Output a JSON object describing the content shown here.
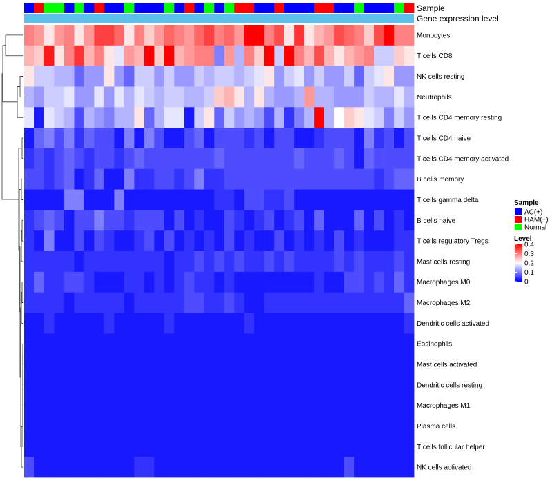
{
  "chart_data": {
    "type": "heatmap",
    "title": "",
    "colorscale": {
      "low": "#0000ff",
      "mid": "#ffffff",
      "high": "#ff0000",
      "min": 0,
      "mid_value": 0.2,
      "max": 0.4
    },
    "annotations": {
      "sample_label": "Sample",
      "gene_expression_label": "Gene expression level",
      "gene_expression_color": "#5bc0eb",
      "sample_colors": {
        "AC(+)": "#0000ff",
        "HAM(+)": "#ff0000",
        "Normal": "#00ff00"
      },
      "sample_groups": [
        "AC(+)",
        "HAM(+)",
        "Normal",
        "Normal",
        "AC(+)",
        "Normal",
        "AC(+)",
        "HAM(+)",
        "AC(+)",
        "AC(+)",
        "Normal",
        "AC(+)",
        "AC(+)",
        "AC(+)",
        "Normal",
        "AC(+)",
        "HAM(+)",
        "AC(+)",
        "Normal",
        "AC(+)",
        "Normal",
        "HAM(+)",
        "HAM(+)",
        "AC(+)",
        "AC(+)",
        "HAM(+)",
        "AC(+)",
        "AC(+)",
        "AC(+)",
        "HAM(+)",
        "HAM(+)",
        "AC(+)",
        "AC(+)",
        "Normal",
        "AC(+)",
        "AC(+)",
        "AC(+)",
        "Normal",
        "HAM(+)"
      ]
    },
    "legend": {
      "position": "right",
      "sample_title": "Sample",
      "sample_entries": [
        {
          "label": "AC(+)",
          "color": "#0000ff"
        },
        {
          "label": "HAM(+)",
          "color": "#ff0000"
        },
        {
          "label": "Normal",
          "color": "#00ff00"
        }
      ],
      "level_title": "Level",
      "level_ticks": [
        "0.4",
        "0.3",
        "0.2",
        "0.1",
        "0"
      ],
      "level_tick_values": [
        0.4,
        0.3,
        0.2,
        0.1,
        0
      ]
    },
    "rows": [
      "Monocytes",
      "T cells CD8",
      "NK cells resting",
      "Neutrophils",
      "T cells CD4 memory resting",
      "T cells CD4 naive",
      "T cells CD4 memory activated",
      "B cells memory",
      "T cells gamma delta",
      "B cells naive",
      "T cells regulatory  Tregs",
      "Mast cells resting",
      "Macrophages M0",
      "Macrophages M2",
      "Dendritic cells activated",
      "Eosinophils",
      "Mast cells activated",
      "Dendritic cells resting",
      "Macrophages M1",
      "Plasma cells",
      "T cells follicular helper",
      "NK cells activated"
    ],
    "n_columns": 39,
    "values": [
      [
        0.3,
        0.28,
        0.22,
        0.28,
        0.3,
        0.22,
        0.28,
        0.35,
        0.35,
        0.32,
        0.22,
        0.3,
        0.24,
        0.28,
        0.32,
        0.3,
        0.28,
        0.32,
        0.35,
        0.3,
        0.32,
        0.28,
        0.4,
        0.4,
        0.3,
        0.34,
        0.22,
        0.36,
        0.22,
        0.26,
        0.28,
        0.34,
        0.32,
        0.3,
        0.24,
        0.34,
        0.4,
        0.3,
        0.3
      ],
      [
        0.26,
        0.24,
        0.38,
        0.22,
        0.3,
        0.36,
        0.26,
        0.3,
        0.22,
        0.18,
        0.28,
        0.26,
        0.4,
        0.24,
        0.4,
        0.26,
        0.28,
        0.3,
        0.3,
        0.1,
        0.28,
        0.14,
        0.3,
        0.24,
        0.4,
        0.16,
        0.4,
        0.3,
        0.26,
        0.34,
        0.26,
        0.22,
        0.26,
        0.28,
        0.3,
        0.16,
        0.16,
        0.24,
        0.22
      ],
      [
        0.22,
        0.16,
        0.16,
        0.14,
        0.14,
        0.08,
        0.12,
        0.12,
        0.22,
        0.12,
        0.08,
        0.16,
        0.16,
        0.12,
        0.16,
        0.12,
        0.12,
        0.16,
        0.14,
        0.16,
        0.16,
        0.14,
        0.16,
        0.18,
        0.22,
        0.12,
        0.16,
        0.18,
        0.12,
        0.16,
        0.12,
        0.12,
        0.16,
        0.08,
        0.16,
        0.18,
        0.22,
        0.12,
        0.12
      ],
      [
        0.14,
        0.12,
        0.16,
        0.16,
        0.18,
        0.12,
        0.12,
        0.18,
        0.12,
        0.18,
        0.14,
        0.18,
        0.16,
        0.14,
        0.16,
        0.16,
        0.14,
        0.14,
        0.16,
        0.24,
        0.26,
        0.22,
        0.14,
        0.22,
        0.14,
        0.12,
        0.12,
        0.14,
        0.28,
        0.14,
        0.14,
        0.12,
        0.12,
        0.12,
        0.16,
        0.14,
        0.14,
        0.18,
        0.14
      ],
      [
        0.18,
        0.02,
        0.18,
        0.16,
        0.14,
        0.06,
        0.14,
        0.12,
        0.1,
        0.14,
        0.14,
        0.22,
        0.08,
        0.14,
        0.18,
        0.18,
        0.02,
        0.16,
        0.22,
        0.08,
        0.16,
        0.12,
        0.14,
        0.12,
        0.06,
        0.14,
        0.04,
        0.1,
        0.14,
        0.4,
        0.14,
        0.2,
        0.24,
        0.22,
        0.18,
        0.16,
        0.1,
        0.16,
        0.12
      ],
      [
        0.02,
        0.08,
        0.1,
        0.06,
        0.1,
        0.04,
        0.08,
        0.06,
        0.06,
        0.02,
        0.1,
        0.02,
        0.1,
        0.06,
        0.02,
        0.02,
        0.06,
        0.08,
        0.02,
        0.06,
        0.06,
        0.06,
        0.04,
        0.06,
        0.02,
        0.06,
        0.06,
        0.02,
        0.02,
        0.04,
        0.06,
        0.06,
        0.06,
        0.02,
        0.1,
        0.04,
        0.06,
        0.02,
        0.06
      ],
      [
        0.04,
        0.06,
        0.04,
        0.06,
        0.08,
        0.06,
        0.04,
        0.06,
        0.06,
        0.04,
        0.06,
        0.08,
        0.06,
        0.06,
        0.06,
        0.06,
        0.06,
        0.06,
        0.06,
        0.08,
        0.06,
        0.06,
        0.06,
        0.06,
        0.06,
        0.06,
        0.06,
        0.08,
        0.06,
        0.06,
        0.06,
        0.08,
        0.06,
        0.02,
        0.08,
        0.06,
        0.06,
        0.06,
        0.06
      ],
      [
        0.06,
        0.06,
        0.04,
        0.06,
        0.08,
        0.02,
        0.04,
        0.08,
        0.02,
        0.02,
        0.1,
        0.04,
        0.04,
        0.06,
        0.06,
        0.04,
        0.06,
        0.1,
        0.04,
        0.04,
        0.06,
        0.06,
        0.06,
        0.06,
        0.06,
        0.06,
        0.06,
        0.06,
        0.06,
        0.06,
        0.06,
        0.06,
        0.06,
        0.06,
        0.06,
        0.04,
        0.06,
        0.08,
        0.08
      ],
      [
        0.02,
        0.02,
        0.02,
        0.02,
        0.1,
        0.1,
        0.02,
        0.02,
        0.02,
        0.1,
        0.02,
        0.02,
        0.02,
        0.02,
        0.02,
        0.02,
        0.02,
        0.02,
        0.02,
        0.04,
        0.04,
        0.02,
        0.06,
        0.06,
        0.04,
        0.04,
        0.06,
        0.02,
        0.02,
        0.02,
        0.02,
        0.02,
        0.02,
        0.02,
        0.02,
        0.02,
        0.02,
        0.02,
        0.02
      ],
      [
        0.04,
        0.06,
        0.08,
        0.06,
        0.02,
        0.06,
        0.06,
        0.1,
        0.06,
        0.06,
        0.04,
        0.06,
        0.06,
        0.06,
        0.02,
        0.06,
        0.02,
        0.04,
        0.02,
        0.02,
        0.06,
        0.04,
        0.02,
        0.04,
        0.06,
        0.02,
        0.04,
        0.06,
        0.02,
        0.08,
        0.02,
        0.02,
        0.02,
        0.08,
        0.02,
        0.06,
        0.02,
        0.04,
        0.02
      ],
      [
        0.04,
        0.02,
        0.1,
        0.02,
        0.02,
        0.06,
        0.02,
        0.06,
        0.04,
        0.02,
        0.02,
        0.04,
        0.06,
        0.02,
        0.06,
        0.02,
        0.04,
        0.02,
        0.04,
        0.02,
        0.06,
        0.02,
        0.04,
        0.02,
        0.02,
        0.06,
        0.02,
        0.04,
        0.02,
        0.04,
        0.02,
        0.06,
        0.02,
        0.04,
        0.02,
        0.02,
        0.02,
        0.04,
        0.04
      ],
      [
        0.04,
        0.04,
        0.04,
        0.04,
        0.04,
        0.02,
        0.04,
        0.04,
        0.04,
        0.04,
        0.04,
        0.04,
        0.04,
        0.04,
        0.02,
        0.04,
        0.04,
        0.06,
        0.04,
        0.06,
        0.04,
        0.06,
        0.04,
        0.04,
        0.06,
        0.04,
        0.06,
        0.04,
        0.04,
        0.04,
        0.04,
        0.06,
        0.04,
        0.06,
        0.04,
        0.04,
        0.04,
        0.06,
        0.04
      ],
      [
        0.04,
        0.08,
        0.04,
        0.04,
        0.06,
        0.06,
        0.04,
        0.02,
        0.02,
        0.02,
        0.04,
        0.04,
        0.02,
        0.04,
        0.02,
        0.04,
        0.06,
        0.04,
        0.04,
        0.02,
        0.04,
        0.02,
        0.02,
        0.02,
        0.02,
        0.02,
        0.02,
        0.02,
        0.02,
        0.04,
        0.02,
        0.02,
        0.06,
        0.06,
        0.04,
        0.06,
        0.04,
        0.08,
        0.04
      ],
      [
        0.04,
        0.04,
        0.04,
        0.04,
        0.02,
        0.04,
        0.04,
        0.04,
        0.04,
        0.04,
        0.02,
        0.04,
        0.04,
        0.04,
        0.04,
        0.04,
        0.06,
        0.06,
        0.04,
        0.04,
        0.06,
        0.04,
        0.02,
        0.02,
        0.04,
        0.04,
        0.04,
        0.04,
        0.04,
        0.04,
        0.04,
        0.04,
        0.04,
        0.04,
        0.04,
        0.04,
        0.04,
        0.04,
        0.08
      ],
      [
        0.02,
        0.02,
        0.04,
        0.02,
        0.02,
        0.02,
        0.02,
        0.02,
        0.04,
        0.02,
        0.02,
        0.02,
        0.02,
        0.02,
        0.04,
        0.02,
        0.02,
        0.02,
        0.02,
        0.02,
        0.02,
        0.02,
        0.04,
        0.02,
        0.02,
        0.02,
        0.02,
        0.02,
        0.02,
        0.02,
        0.02,
        0.02,
        0.02,
        0.02,
        0.02,
        0.02,
        0.02,
        0.02,
        0.04
      ],
      [
        0.02,
        0.02,
        0.02,
        0.02,
        0.02,
        0.02,
        0.02,
        0.02,
        0.02,
        0.02,
        0.02,
        0.02,
        0.02,
        0.02,
        0.02,
        0.02,
        0.02,
        0.02,
        0.02,
        0.02,
        0.02,
        0.02,
        0.02,
        0.02,
        0.02,
        0.02,
        0.02,
        0.02,
        0.02,
        0.02,
        0.02,
        0.02,
        0.02,
        0.02,
        0.02,
        0.02,
        0.02,
        0.02,
        0.02
      ],
      [
        0.02,
        0.02,
        0.02,
        0.02,
        0.02,
        0.02,
        0.02,
        0.02,
        0.02,
        0.02,
        0.02,
        0.02,
        0.02,
        0.02,
        0.02,
        0.02,
        0.02,
        0.02,
        0.02,
        0.02,
        0.02,
        0.02,
        0.02,
        0.02,
        0.02,
        0.02,
        0.02,
        0.02,
        0.02,
        0.02,
        0.02,
        0.02,
        0.02,
        0.02,
        0.02,
        0.02,
        0.02,
        0.02,
        0.02
      ],
      [
        0.02,
        0.02,
        0.02,
        0.02,
        0.02,
        0.02,
        0.02,
        0.02,
        0.02,
        0.02,
        0.02,
        0.02,
        0.02,
        0.02,
        0.02,
        0.02,
        0.02,
        0.02,
        0.02,
        0.02,
        0.02,
        0.02,
        0.02,
        0.02,
        0.02,
        0.02,
        0.02,
        0.02,
        0.02,
        0.02,
        0.02,
        0.02,
        0.02,
        0.02,
        0.02,
        0.02,
        0.02,
        0.02,
        0.02
      ],
      [
        0.02,
        0.02,
        0.02,
        0.02,
        0.02,
        0.02,
        0.02,
        0.02,
        0.02,
        0.02,
        0.02,
        0.02,
        0.02,
        0.02,
        0.02,
        0.02,
        0.02,
        0.02,
        0.02,
        0.02,
        0.02,
        0.02,
        0.02,
        0.02,
        0.02,
        0.02,
        0.02,
        0.02,
        0.02,
        0.02,
        0.02,
        0.02,
        0.02,
        0.02,
        0.02,
        0.02,
        0.02,
        0.02,
        0.02
      ],
      [
        0.02,
        0.02,
        0.02,
        0.02,
        0.02,
        0.02,
        0.02,
        0.02,
        0.02,
        0.02,
        0.02,
        0.02,
        0.02,
        0.02,
        0.02,
        0.02,
        0.02,
        0.02,
        0.02,
        0.02,
        0.02,
        0.02,
        0.02,
        0.02,
        0.02,
        0.02,
        0.02,
        0.02,
        0.02,
        0.02,
        0.02,
        0.02,
        0.02,
        0.02,
        0.02,
        0.02,
        0.02,
        0.02,
        0.02
      ],
      [
        0.02,
        0.02,
        0.02,
        0.02,
        0.02,
        0.02,
        0.02,
        0.02,
        0.02,
        0.02,
        0.02,
        0.02,
        0.02,
        0.02,
        0.02,
        0.02,
        0.02,
        0.02,
        0.02,
        0.02,
        0.02,
        0.02,
        0.02,
        0.02,
        0.02,
        0.02,
        0.02,
        0.02,
        0.02,
        0.02,
        0.02,
        0.02,
        0.02,
        0.02,
        0.02,
        0.02,
        0.02,
        0.02,
        0.02
      ],
      [
        0.06,
        0.02,
        0.02,
        0.02,
        0.02,
        0.02,
        0.02,
        0.02,
        0.02,
        0.02,
        0.02,
        0.04,
        0.04,
        0.02,
        0.02,
        0.02,
        0.02,
        0.02,
        0.02,
        0.02,
        0.02,
        0.02,
        0.02,
        0.02,
        0.02,
        0.02,
        0.02,
        0.02,
        0.02,
        0.02,
        0.02,
        0.02,
        0.06,
        0.02,
        0.02,
        0.02,
        0.02,
        0.02,
        0.02
      ]
    ]
  }
}
